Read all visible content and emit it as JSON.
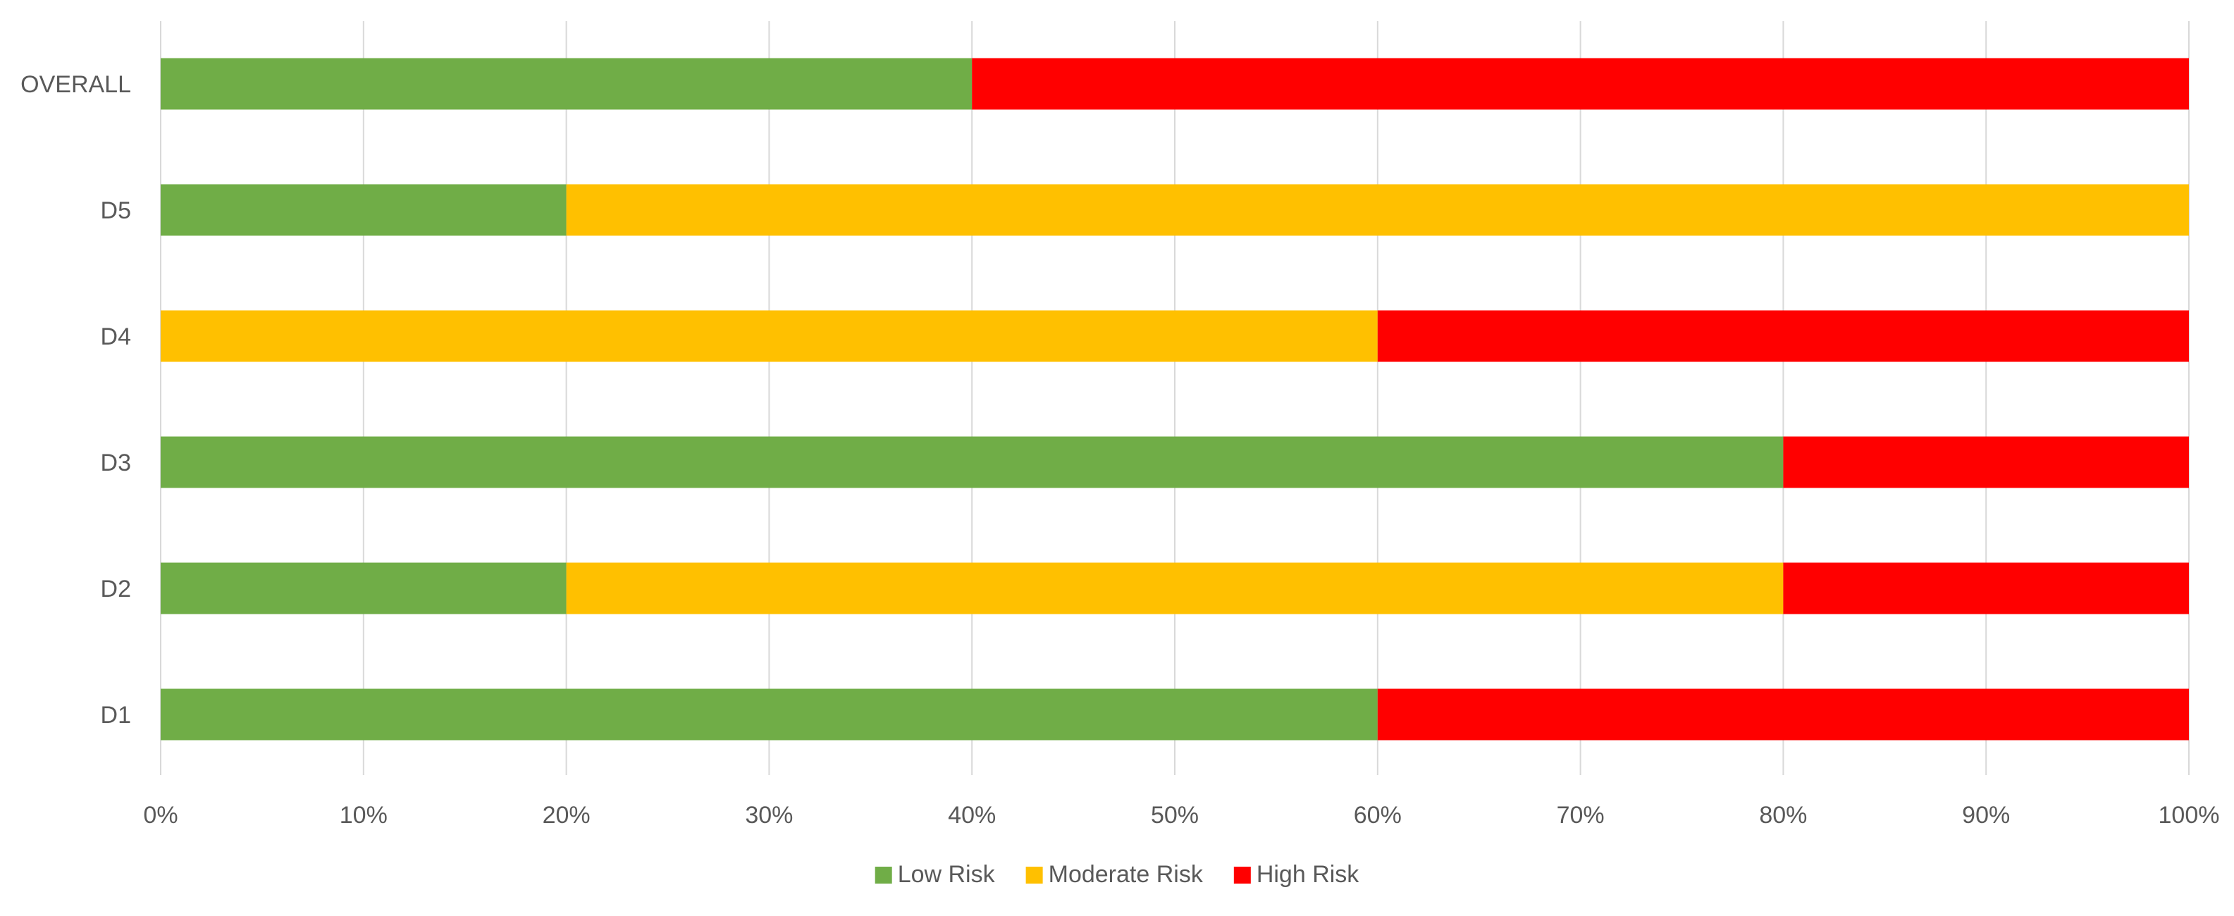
{
  "chart_data": {
    "type": "bar",
    "orientation": "horizontal",
    "stacked": "percent",
    "categories": [
      "OVERALL",
      "D5",
      "D4",
      "D3",
      "D2",
      "D1"
    ],
    "series": [
      {
        "name": "Low Risk",
        "color": "#70AD47",
        "values": [
          40,
          20,
          0,
          80,
          20,
          60
        ]
      },
      {
        "name": "Moderate Risk",
        "color": "#FFC000",
        "values": [
          0,
          80,
          60,
          0,
          60,
          0
        ]
      },
      {
        "name": "High Risk",
        "color": "#FF0000",
        "values": [
          60,
          0,
          40,
          20,
          20,
          40
        ]
      }
    ],
    "x_ticks": [
      "0%",
      "10%",
      "20%",
      "30%",
      "40%",
      "50%",
      "60%",
      "70%",
      "80%",
      "90%",
      "100%"
    ],
    "xlim": [
      0,
      100
    ],
    "grid": "vertical",
    "legend_position": "bottom",
    "title": "",
    "xlabel": "",
    "ylabel": ""
  }
}
